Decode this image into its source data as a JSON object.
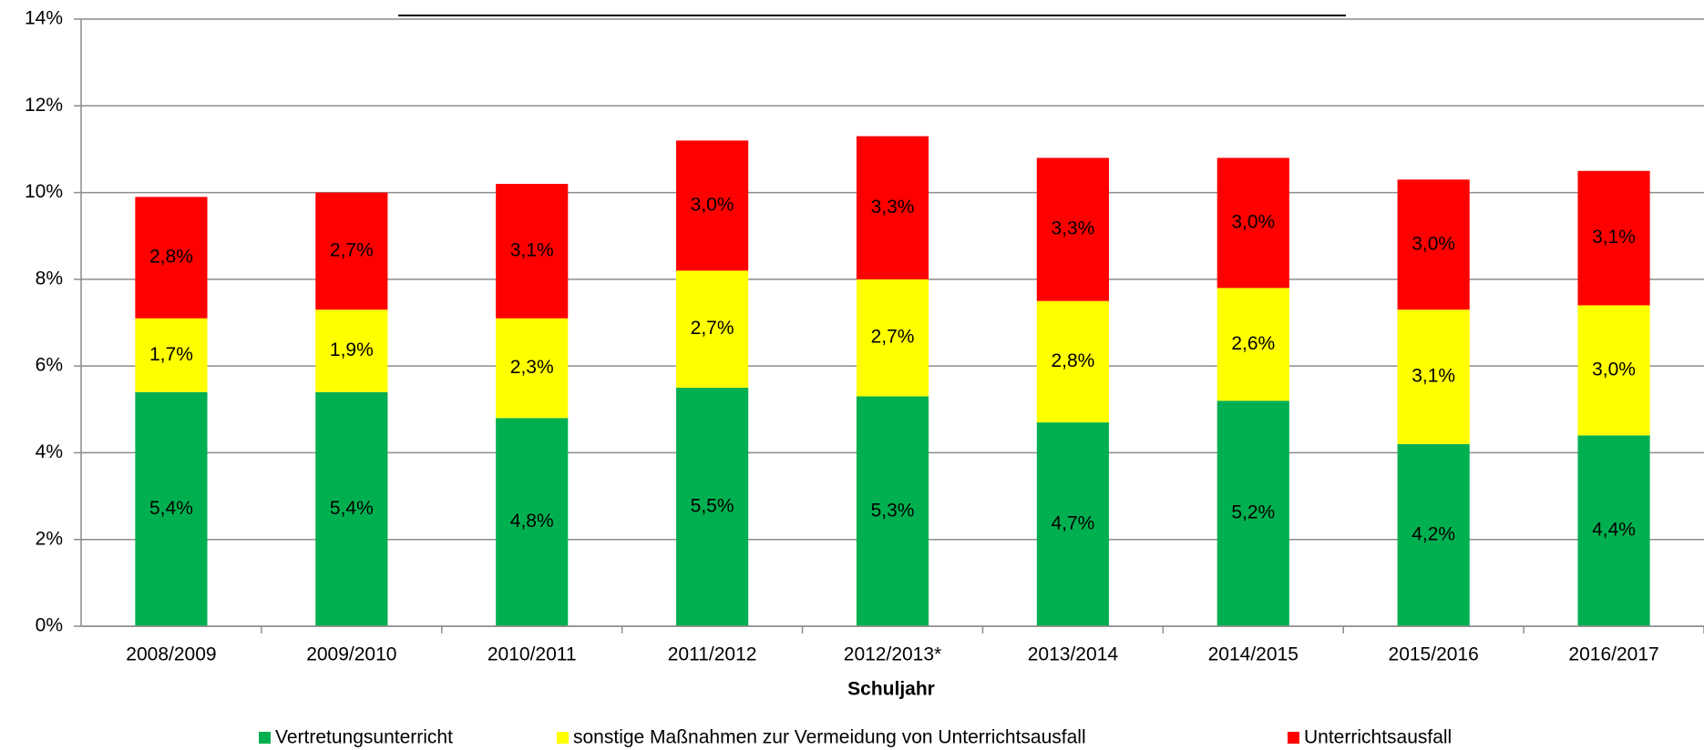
{
  "chart_data": {
    "type": "stacked_bar",
    "x_label": "Schuljahr",
    "categories": [
      "2008/2009",
      "2009/2010",
      "2010/2011",
      "2011/2012",
      "2012/2013*",
      "2013/2014",
      "2014/2015",
      "2015/2016",
      "2016/2017"
    ],
    "series": [
      {
        "name": "Vertretungsunterricht",
        "color": "#00b050",
        "values": [
          5.4,
          5.4,
          4.8,
          5.5,
          5.3,
          4.7,
          5.2,
          4.2,
          4.4
        ],
        "value_labels": [
          "5,4%",
          "5,4%",
          "4,8%",
          "5,5%",
          "5,3%",
          "4,7%",
          "5,2%",
          "4,2%",
          "4,4%"
        ]
      },
      {
        "name": "sonstige Maßnahmen zur Vermeidung von Unterrichtsausfall",
        "color": "#ffff00",
        "values": [
          1.7,
          1.9,
          2.3,
          2.7,
          2.7,
          2.8,
          2.6,
          3.1,
          3.0
        ],
        "value_labels": [
          "1,7%",
          "1,9%",
          "2,3%",
          "2,7%",
          "2,7%",
          "2,8%",
          "2,6%",
          "3,1%",
          "3,0%"
        ]
      },
      {
        "name": "Unterrichtsausfall",
        "color": "#ff0000",
        "values": [
          2.8,
          2.7,
          3.1,
          3.0,
          3.3,
          3.3,
          3.0,
          3.0,
          3.1
        ],
        "value_labels": [
          "2,8%",
          "2,7%",
          "3,1%",
          "3,0%",
          "3,3%",
          "3,3%",
          "3,0%",
          "3,0%",
          "3,1%"
        ]
      }
    ],
    "ylim": [
      0,
      14
    ],
    "yticks": [
      {
        "value": 0,
        "label": "0%"
      },
      {
        "value": 2,
        "label": "2%"
      },
      {
        "value": 4,
        "label": "4%"
      },
      {
        "value": 6,
        "label": "6%"
      },
      {
        "value": 8,
        "label": "8%"
      },
      {
        "value": 10,
        "label": "10%"
      },
      {
        "value": 12,
        "label": "12%"
      },
      {
        "value": 14,
        "label": "14%"
      }
    ],
    "grid": true,
    "legend": "bottom"
  }
}
